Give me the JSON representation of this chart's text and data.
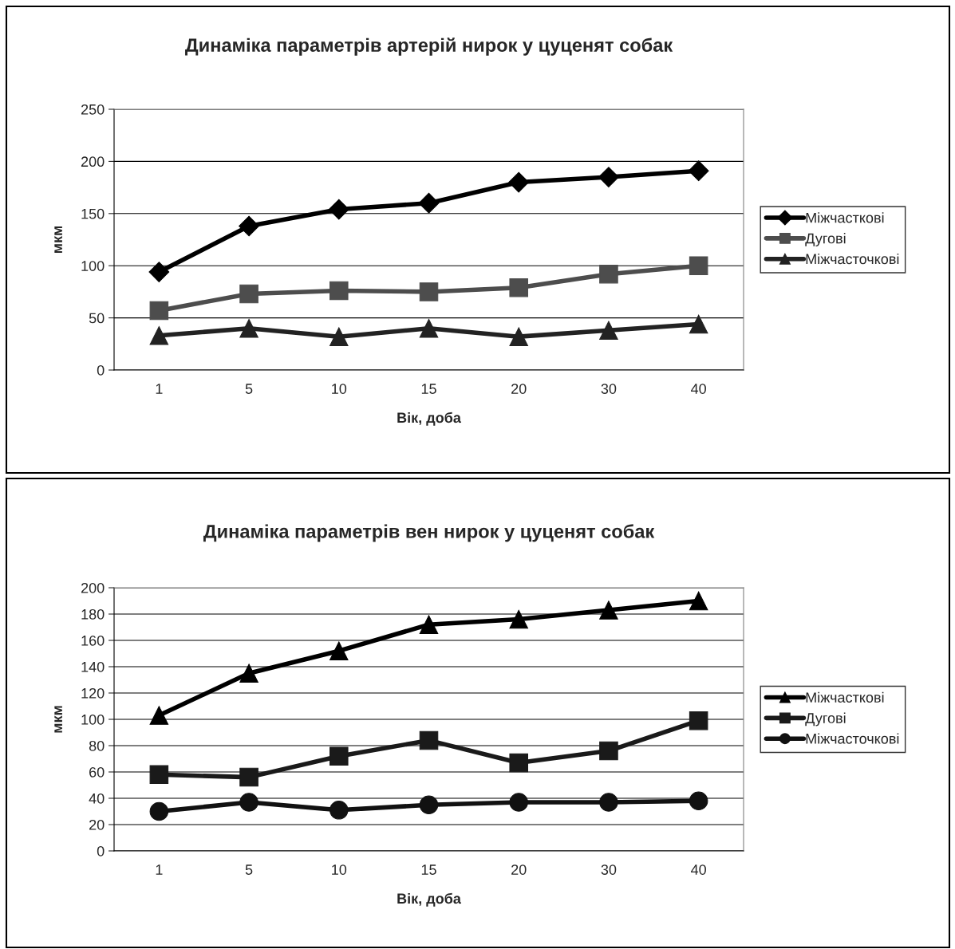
{
  "chart_data": [
    {
      "type": "line",
      "title": "Динаміка параметрів артерій нирок у цуценят собак",
      "xlabel": "Вік, доба",
      "ylabel": "мкм",
      "categories": [
        "1",
        "5",
        "10",
        "15",
        "20",
        "30",
        "40"
      ],
      "ylim": [
        0,
        250
      ],
      "yticks": [
        0,
        50,
        100,
        150,
        200,
        250
      ],
      "grid": "y",
      "legend": "right",
      "line_style": "solid",
      "series": [
        {
          "name": "Міжчасткові",
          "color": "#000000",
          "marker": "diamond",
          "values": [
            94,
            138,
            154,
            160,
            180,
            185,
            191
          ]
        },
        {
          "name": "Дугові",
          "color": "#4d4d4d",
          "marker": "square",
          "values": [
            57,
            73,
            76,
            75,
            79,
            92,
            100
          ]
        },
        {
          "name": "Міжчасточкові",
          "color": "#222222",
          "marker": "triangle",
          "values": [
            33,
            40,
            32,
            40,
            32,
            38,
            44
          ]
        }
      ]
    },
    {
      "type": "line",
      "title": "Динаміка параметрів вен нирок у цуценят собак",
      "xlabel": "Вік, доба",
      "ylabel": "мкм",
      "categories": [
        "1",
        "5",
        "10",
        "15",
        "20",
        "30",
        "40"
      ],
      "ylim": [
        0,
        200
      ],
      "yticks": [
        0,
        20,
        40,
        60,
        80,
        100,
        120,
        140,
        160,
        180,
        200
      ],
      "grid": "y",
      "legend": "right",
      "line_style": "solid",
      "series": [
        {
          "name": "Міжчасткові",
          "color": "#000000",
          "marker": "triangle",
          "values": [
            103,
            135,
            152,
            172,
            176,
            183,
            190
          ]
        },
        {
          "name": "Дугові",
          "color": "#1a1a1a",
          "marker": "square",
          "values": [
            58,
            56,
            72,
            84,
            67,
            76,
            99
          ]
        },
        {
          "name": "Міжчасточкові",
          "color": "#111111",
          "marker": "circle",
          "values": [
            30,
            37,
            31,
            35,
            37,
            37,
            38
          ]
        }
      ]
    }
  ]
}
